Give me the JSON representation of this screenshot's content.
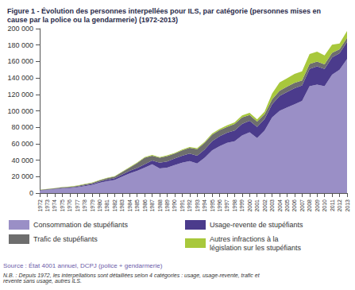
{
  "chart_data": {
    "type": "area",
    "title": "Figure 1 - Évolution des personnes interpellées pour ILS, par catégorie (personnes mises en cause par la police ou la gendarmerie) (1972-2013)",
    "source": "Source : État 4001 annuel, DCPJ (police + gendarmerie)",
    "note": "N.B. : Depuis 1972, les interpellations sont détaillées selon 4 catégories : usage, usage-revente, trafic et revente sans usage, autres ILS.",
    "categories": [
      "1972",
      "1973",
      "1974",
      "1975",
      "1976",
      "1977",
      "1978",
      "1979",
      "1980",
      "1981",
      "1982",
      "1983",
      "1984",
      "1985",
      "1986",
      "1987",
      "1988",
      "1989",
      "1990",
      "1991",
      "1992",
      "1993",
      "1994",
      "1995",
      "1996",
      "1997",
      "1998",
      "1999",
      "2000",
      "2001",
      "2002",
      "2003",
      "2004",
      "2005",
      "2006",
      "2007",
      "2008",
      "2009",
      "2010",
      "2011",
      "2012",
      "2013"
    ],
    "stacked": true,
    "grid": false,
    "legend": "bottom",
    "ylim": [
      0,
      200000
    ],
    "yticks": [
      0,
      {
        "value": 20000,
        "label": "20 000"
      },
      {
        "value": 40000,
        "label": "40 000"
      },
      {
        "value": 60000,
        "label": "60 000"
      },
      {
        "value": 80000,
        "label": "80 000"
      },
      {
        "value": 100000,
        "label": "100 000"
      },
      {
        "value": 120000,
        "label": "120 000"
      },
      {
        "value": 140000,
        "label": "140 000"
      },
      {
        "value": 160000,
        "label": "160 000"
      },
      {
        "value": 180000,
        "label": "180 000"
      },
      {
        "value": 200000,
        "label": "200 000"
      }
    ],
    "series": [
      {
        "name": "Consommation de stupéfiants",
        "color": "#9a8fc6",
        "values": [
          3000,
          3800,
          4500,
          5500,
          6000,
          7000,
          8500,
          10000,
          12500,
          14500,
          16000,
          20000,
          24000,
          27000,
          31000,
          35000,
          30000,
          31000,
          34000,
          37000,
          39000,
          36000,
          43000,
          52000,
          57000,
          61000,
          63000,
          70000,
          74000,
          67000,
          76000,
          92000,
          100000,
          104000,
          108000,
          112000,
          130000,
          132000,
          130000,
          144000,
          150000,
          163000
        ]
      },
      {
        "name": "Usage-revente de stupéfiants",
        "color": "#4b3b8c",
        "values": [
          300,
          400,
          500,
          600,
          700,
          800,
          900,
          1000,
          1500,
          1800,
          2000,
          2500,
          3000,
          3500,
          4000,
          4500,
          7000,
          7500,
          8000,
          8500,
          9000,
          9500,
          10000,
          11000,
          12000,
          12500,
          13000,
          14000,
          14000,
          13500,
          14000,
          16000,
          18000,
          19000,
          19500,
          19000,
          21000,
          22000,
          21000,
          21000,
          20000,
          21000
        ]
      },
      {
        "name": "Trafic de stupéfiants",
        "color": "#6e6e6e",
        "values": [
          500,
          600,
          700,
          800,
          900,
          1000,
          1200,
          1300,
          1500,
          1700,
          2000,
          3000,
          4000,
          6000,
          8000,
          6000,
          6000,
          6500,
          6000,
          6500,
          7000,
          8000,
          8000,
          8000,
          7500,
          7000,
          8000,
          8000,
          7000,
          6500,
          6000,
          6000,
          6500,
          6500,
          6500,
          6000,
          6000,
          6000,
          5500,
          5500,
          5000,
          5000
        ]
      },
      {
        "name": "Autres infractions à la législation sur les stupéfiants",
        "color": "#a8c83c",
        "values": [
          200,
          200,
          300,
          300,
          300,
          400,
          400,
          400,
          500,
          500,
          500,
          500,
          600,
          600,
          700,
          800,
          800,
          800,
          900,
          900,
          1000,
          1000,
          1200,
          1500,
          1500,
          1800,
          2000,
          2500,
          2500,
          2500,
          3000,
          7000,
          10000,
          10000,
          11000,
          11000,
          12000,
          12000,
          11000,
          10000,
          7000,
          8000
        ]
      }
    ]
  }
}
